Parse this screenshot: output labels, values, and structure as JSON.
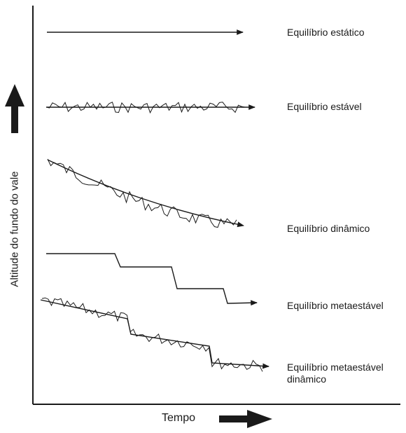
{
  "axes": {
    "y_label": "Altitude do fundo do vale",
    "x_label": "Tempo"
  },
  "curves": [
    {
      "id": "static",
      "label": "Equilíbrio estático"
    },
    {
      "id": "steady",
      "label": "Equilíbrio estável"
    },
    {
      "id": "dynamic",
      "label": "Equilíbrio dinâmico"
    },
    {
      "id": "metastable",
      "label": "Equilíbrio metaestável"
    },
    {
      "id": "dynamic-metastable",
      "label": "Equilíbrio metaestável dinâmico"
    }
  ],
  "colors": {
    "ink": "#1a1a1a",
    "background": "#ffffff"
  }
}
